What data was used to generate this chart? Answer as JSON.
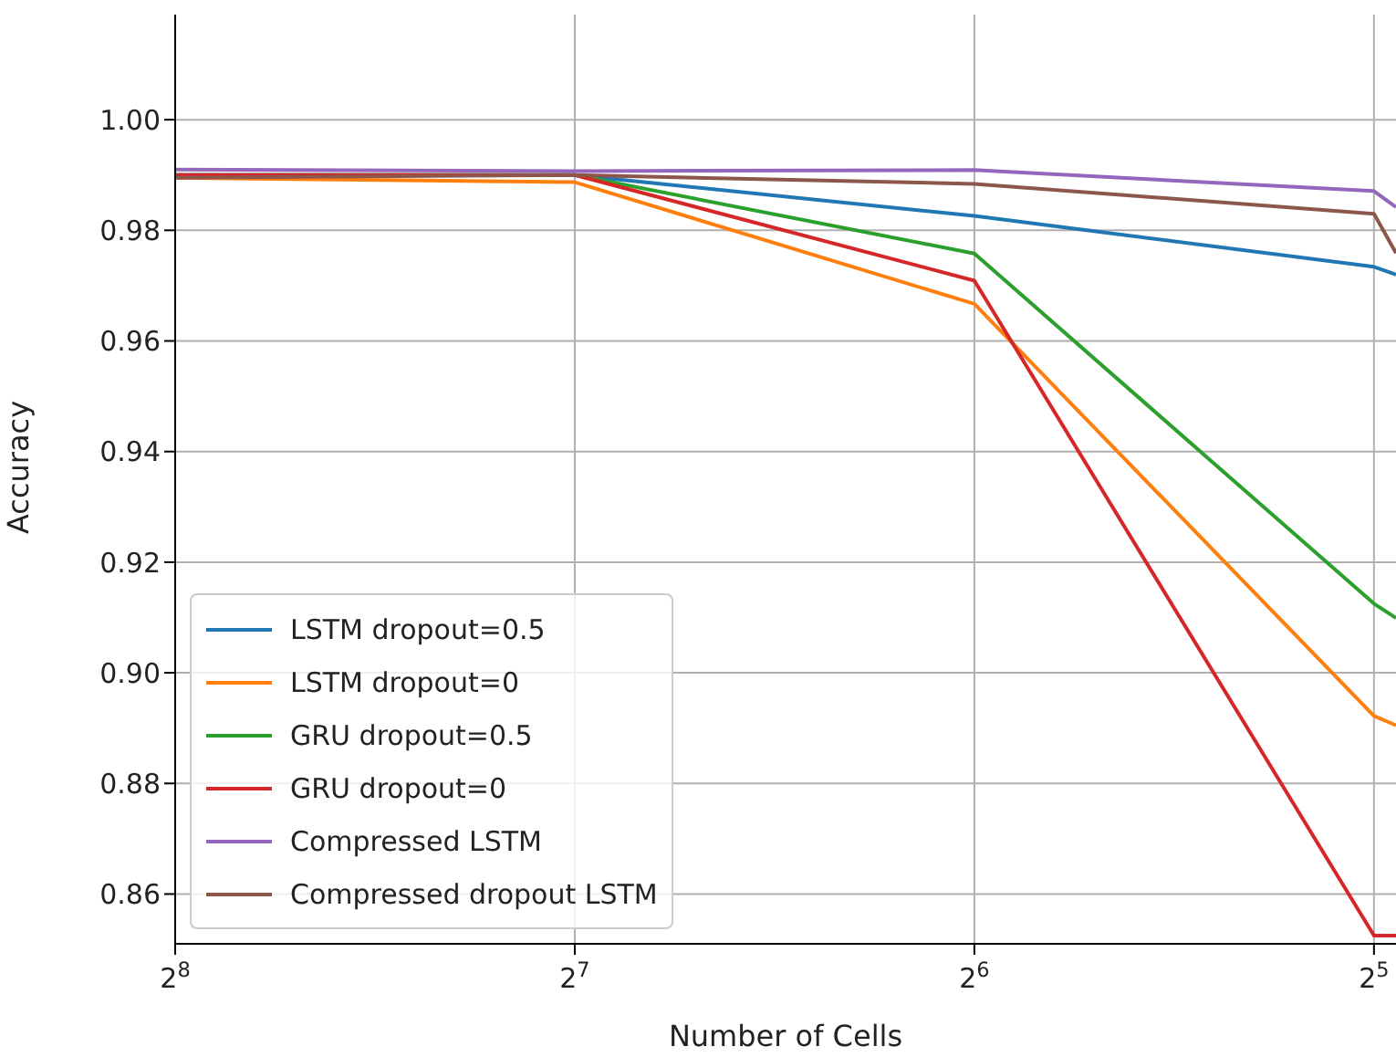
{
  "chart_data": {
    "type": "line",
    "xlabel": "Number of Cells",
    "ylabel": "Accuracy",
    "x": [
      256,
      128,
      64,
      32,
      30.8
    ],
    "xlim": [
      256,
      30.8
    ],
    "xticks": [
      {
        "value": 256,
        "label": "2$^{8}$"
      },
      {
        "value": 128,
        "label": "2$^{7}$"
      },
      {
        "value": 64,
        "label": "2$^{6}$"
      },
      {
        "value": 32,
        "label": "2$^{5}$"
      }
    ],
    "log": "x",
    "ylim": [
      0.851,
      1.019
    ],
    "yticks": [
      0.86,
      0.88,
      {
        "value": 0.9,
        "label": "0.90"
      },
      0.92,
      0.94,
      0.96,
      0.98,
      {
        "value": 1.0,
        "label": "1.00"
      }
    ],
    "series": [
      {
        "name": "LSTM dropout=0.5",
        "color": "#1f77b4",
        "values": [
          0.99,
          0.99,
          0.9826,
          0.9734,
          0.972
        ]
      },
      {
        "name": "LSTM dropout=0",
        "color": "#ff7f0e",
        "values": [
          0.9895,
          0.9887,
          0.9667,
          0.8922,
          0.8905
        ]
      },
      {
        "name": "GRU dropout=0.5",
        "color": "#2ca02c",
        "values": [
          0.99,
          0.99,
          0.9758,
          0.9125,
          0.9099
        ]
      },
      {
        "name": "GRU dropout=0",
        "color": "#d62728",
        "values": [
          0.99,
          0.99,
          0.9709,
          0.8525,
          0.8525
        ]
      },
      {
        "name": "Compressed LSTM",
        "color": "#9467bd",
        "values": [
          0.991,
          0.9907,
          0.9909,
          0.9871,
          0.9842
        ]
      },
      {
        "name": "Compressed dropout LSTM",
        "color": "#8c564b",
        "values": [
          0.9895,
          0.99,
          0.9884,
          0.983,
          0.9759
        ]
      }
    ],
    "grid": true,
    "legend": "bottom left",
    "marker": "none",
    "line_style": "solid"
  }
}
